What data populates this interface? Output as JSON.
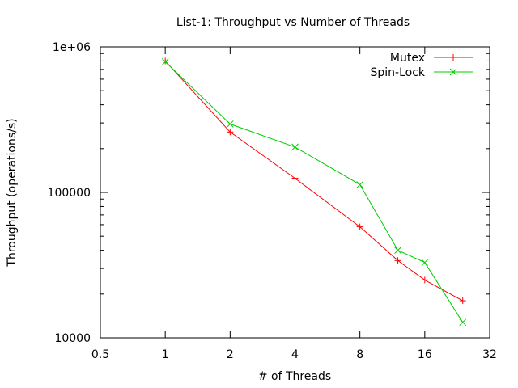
{
  "chart_data": {
    "type": "line",
    "title": "List-1: Throughput vs Number of Threads",
    "xlabel": "# of Threads",
    "ylabel": "Throughput (operations/s)",
    "x_scale": "log2",
    "y_scale": "log10",
    "xlim": [
      0.5,
      32
    ],
    "ylim": [
      10000,
      1000000
    ],
    "x_ticks": [
      0.5,
      1,
      2,
      4,
      8,
      16,
      32
    ],
    "x_tick_labels": [
      "0.5",
      "1",
      "2",
      "4",
      "8",
      "16",
      "32"
    ],
    "y_ticks": [
      10000,
      100000,
      1000000
    ],
    "y_tick_labels": [
      "10000",
      "100000",
      "1e+06"
    ],
    "grid": false,
    "legend_position": "top-right",
    "series": [
      {
        "name": "Mutex",
        "color": "#ff0000",
        "marker": "plus",
        "x": [
          1,
          2,
          4,
          8,
          12,
          16,
          24
        ],
        "y": [
          800000,
          260000,
          125000,
          58000,
          34000,
          25000,
          18000
        ]
      },
      {
        "name": "Spin-Lock",
        "color": "#00cc00",
        "marker": "cross",
        "x": [
          1,
          2,
          4,
          8,
          12,
          16,
          24
        ],
        "y": [
          790000,
          295000,
          205000,
          113000,
          40000,
          33000,
          12800
        ]
      }
    ]
  }
}
